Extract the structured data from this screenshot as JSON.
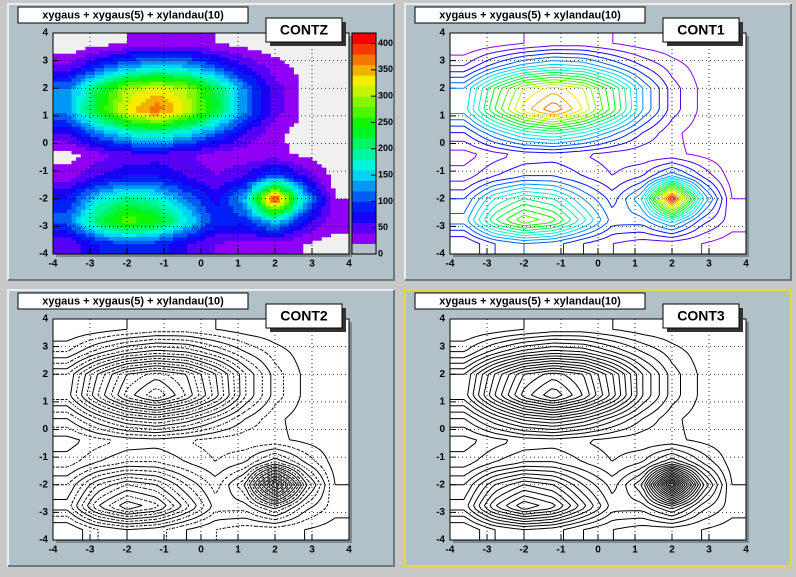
{
  "chart_data": {
    "type": "contour",
    "title": "xygaus + xygaus(5) + xylandau(10)",
    "x": [
      -3.6,
      -2.8,
      -2.0,
      -1.2,
      -0.4,
      0.4,
      1.2,
      2.0,
      2.8,
      3.6
    ],
    "y": [
      -3.6,
      -2.8,
      -2.0,
      -1.2,
      -0.4,
      0.4,
      1.2,
      2.0,
      2.8,
      3.6
    ],
    "z": [
      [
        40,
        80,
        100,
        90,
        60,
        40,
        30,
        30,
        20,
        10
      ],
      [
        110,
        220,
        280,
        250,
        170,
        90,
        90,
        150,
        70,
        30
      ],
      [
        80,
        160,
        200,
        180,
        120,
        70,
        140,
        420,
        150,
        20
      ],
      [
        30,
        60,
        80,
        80,
        60,
        40,
        60,
        120,
        60,
        10
      ],
      [
        10,
        30,
        45,
        50,
        40,
        30,
        25,
        25,
        15,
        5
      ],
      [
        60,
        120,
        170,
        190,
        160,
        110,
        60,
        25,
        10,
        0
      ],
      [
        130,
        240,
        330,
        380,
        320,
        230,
        120,
        50,
        15,
        0
      ],
      [
        120,
        220,
        300,
        330,
        300,
        220,
        120,
        50,
        15,
        0
      ],
      [
        40,
        90,
        130,
        150,
        140,
        100,
        60,
        30,
        10,
        0
      ],
      [
        0,
        10,
        20,
        30,
        30,
        20,
        10,
        5,
        0,
        0
      ]
    ],
    "levels": [
      20,
      40,
      60,
      80,
      100,
      120,
      140,
      160,
      180,
      200,
      220,
      240,
      260,
      280,
      300,
      320,
      340,
      360,
      380,
      400
    ],
    "xlim": [
      -4,
      4
    ],
    "ylim": [
      -4,
      4
    ],
    "zlim": [
      0,
      420
    ],
    "xticks": [
      -4,
      -3,
      -2,
      -1,
      0,
      1,
      2,
      3,
      4
    ],
    "yticks": [
      -4,
      -3,
      -2,
      -1,
      0,
      1,
      2,
      3,
      4
    ],
    "zticks": [
      0,
      50,
      100,
      150,
      200,
      250,
      300,
      350,
      400
    ],
    "grid": true,
    "pads": [
      {
        "label": "CONTZ",
        "style": "filled"
      },
      {
        "label": "CONT1",
        "style": "colored"
      },
      {
        "label": "CONT2",
        "style": "dotted"
      },
      {
        "label": "CONT3",
        "style": "solid"
      }
    ]
  }
}
